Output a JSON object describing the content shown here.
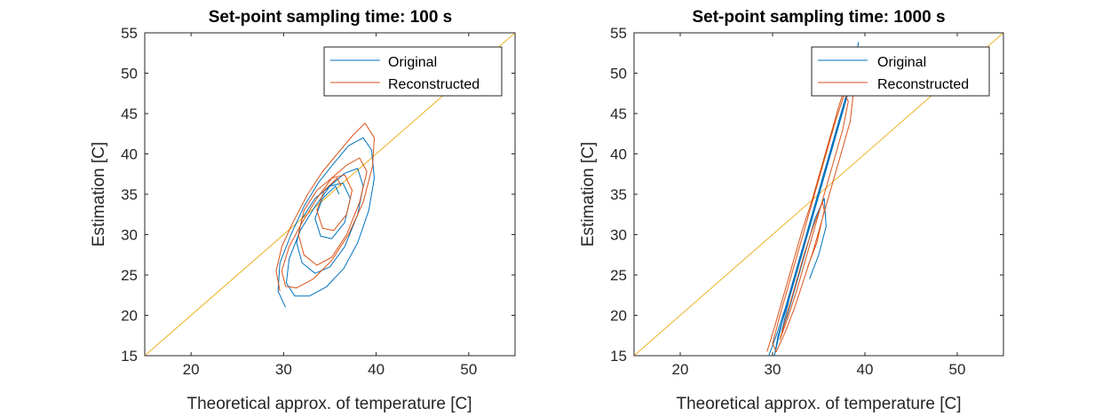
{
  "chart_data": [
    {
      "type": "line",
      "title": "Set-point sampling time: 100 s",
      "xlabel": "Theoretical approx. of temperature [C]",
      "ylabel": "Estimation [C]",
      "xlim": [
        15,
        55
      ],
      "ylim": [
        15,
        55
      ],
      "xticks": [
        "20",
        "30",
        "40",
        "50"
      ],
      "yticks": [
        "15",
        "20",
        "25",
        "30",
        "35",
        "40",
        "45",
        "50",
        "55"
      ],
      "legend": {
        "location": "top-right"
      },
      "series": [
        {
          "name": "Original",
          "color": "#0072BD",
          "x": [
            30.2,
            29.4,
            29.6,
            30.8,
            32.2,
            33.8,
            35.4,
            37.0,
            38.6,
            39.5,
            39.8,
            39.2,
            38.0,
            36.5,
            34.6,
            32.8,
            31.2,
            30.3,
            30.6,
            31.8,
            33.4,
            35.0,
            36.6,
            38.0,
            38.6,
            38.0,
            36.6,
            35.0,
            33.4,
            32.0,
            31.4,
            32.0,
            33.4,
            35.0,
            36.4,
            37.2,
            36.6,
            35.2,
            34.0,
            33.4,
            34.2,
            35.6,
            36.0
          ],
          "y": [
            21.0,
            23.0,
            26.5,
            30.0,
            33.5,
            36.5,
            38.8,
            41.0,
            42.0,
            40.5,
            37.0,
            33.0,
            29.0,
            25.8,
            23.5,
            22.4,
            22.4,
            24.0,
            27.0,
            30.5,
            33.5,
            36.0,
            37.6,
            38.2,
            36.0,
            32.5,
            28.5,
            26.0,
            25.2,
            26.5,
            29.0,
            32.0,
            34.5,
            36.0,
            36.4,
            34.5,
            31.5,
            29.5,
            29.8,
            32.0,
            34.5,
            36.0,
            35.0
          ]
        },
        {
          "name": "Reconstructed",
          "color": "#D95319",
          "x": [
            29.6,
            29.2,
            29.8,
            31.0,
            32.6,
            34.2,
            35.8,
            37.4,
            38.8,
            39.8,
            39.6,
            38.6,
            37.0,
            35.2,
            33.2,
            31.4,
            30.2,
            29.8,
            30.6,
            32.0,
            33.6,
            35.2,
            36.8,
            38.2,
            39.0,
            38.2,
            36.8,
            35.2,
            33.6,
            32.2,
            31.6,
            32.2,
            33.6,
            35.2,
            36.6,
            37.4,
            36.8,
            35.4,
            34.2,
            33.6,
            34.4,
            35.8,
            36.2
          ],
          "y": [
            23.0,
            25.5,
            28.5,
            31.5,
            35.0,
            37.8,
            40.0,
            42.2,
            43.8,
            42.0,
            38.5,
            34.0,
            30.0,
            26.8,
            24.5,
            23.4,
            23.6,
            25.5,
            28.5,
            31.5,
            34.5,
            37.0,
            38.6,
            39.5,
            37.8,
            34.0,
            30.0,
            27.2,
            26.2,
            27.5,
            30.0,
            33.0,
            35.5,
            37.0,
            37.4,
            35.5,
            32.5,
            30.5,
            30.8,
            33.0,
            35.5,
            37.0,
            36.0
          ]
        },
        {
          "name": "",
          "color": "#EDB120",
          "x": [
            15,
            55
          ],
          "y": [
            15,
            55
          ]
        }
      ]
    },
    {
      "type": "line",
      "title": "Set-point sampling time: 1000 s",
      "xlabel": "Theoretical approx. of temperature [C]",
      "ylabel": "Estimation [C]",
      "xlim": [
        15,
        55
      ],
      "ylim": [
        15,
        55
      ],
      "xticks": [
        "20",
        "30",
        "40",
        "50"
      ],
      "yticks": [
        "15",
        "20",
        "25",
        "30",
        "35",
        "40",
        "45",
        "50",
        "55"
      ],
      "legend": {
        "location": "top-right"
      },
      "series": [
        {
          "name": "Original",
          "color": "#0072BD",
          "x": [
            29.6,
            30.4,
            31.4,
            32.4,
            33.4,
            34.4,
            35.4,
            36.4,
            37.4,
            38.4,
            39.0,
            39.3,
            39.0,
            38.0,
            37.0,
            36.0,
            35.0,
            34.0,
            33.0,
            32.0,
            31.0,
            30.2,
            30.6,
            31.6,
            32.6,
            33.6,
            34.6,
            35.6,
            36.6,
            37.6,
            38.4,
            37.8,
            36.8,
            35.8,
            34.8,
            33.8,
            32.8,
            31.8,
            31.0,
            31.6,
            32.6,
            33.6,
            34.6,
            35.6,
            35.8,
            35.0,
            34.0
          ],
          "y": [
            15.0,
            17.5,
            21.0,
            25.0,
            29.0,
            33.0,
            37.0,
            41.0,
            45.0,
            49.0,
            52.0,
            53.8,
            51.5,
            47.0,
            43.0,
            39.0,
            35.0,
            31.0,
            27.0,
            23.0,
            19.0,
            15.0,
            17.5,
            21.5,
            25.5,
            29.5,
            33.5,
            37.5,
            41.5,
            45.5,
            48.5,
            46.0,
            42.0,
            38.0,
            34.0,
            30.0,
            26.0,
            22.0,
            18.0,
            20.0,
            24.0,
            28.0,
            32.0,
            34.5,
            31.0,
            27.5,
            24.5
          ]
        },
        {
          "name": "Reconstructed",
          "color": "#D95319",
          "x": [
            29.4,
            30.2,
            31.2,
            32.2,
            33.2,
            34.2,
            35.2,
            36.2,
            37.2,
            38.2,
            38.8,
            38.4,
            37.4,
            36.4,
            35.4,
            34.4,
            33.4,
            32.4,
            31.4,
            30.4,
            30.0,
            30.8,
            31.8,
            32.8,
            33.8,
            34.8,
            35.8,
            36.8,
            37.8,
            38.2,
            37.6,
            36.6,
            35.6,
            34.6,
            33.6,
            32.6,
            31.6,
            30.8,
            31.4,
            32.4,
            33.4,
            34.4,
            35.4,
            35.6,
            34.8,
            33.8
          ],
          "y": [
            15.5,
            18.5,
            22.5,
            26.5,
            30.5,
            34.0,
            38.0,
            42.0,
            46.0,
            49.5,
            48.0,
            44.0,
            40.0,
            36.0,
            32.0,
            28.0,
            24.5,
            21.0,
            18.0,
            15.5,
            16.5,
            20.0,
            24.0,
            28.0,
            32.0,
            36.0,
            40.0,
            44.0,
            47.5,
            46.5,
            43.0,
            39.0,
            35.0,
            31.0,
            27.0,
            23.0,
            19.5,
            17.0,
            19.5,
            23.5,
            27.5,
            31.0,
            34.0,
            33.0,
            29.0,
            26.0
          ]
        },
        {
          "name": "",
          "color": "#EDB120",
          "x": [
            15,
            55
          ],
          "y": [
            15,
            55
          ]
        }
      ]
    }
  ]
}
